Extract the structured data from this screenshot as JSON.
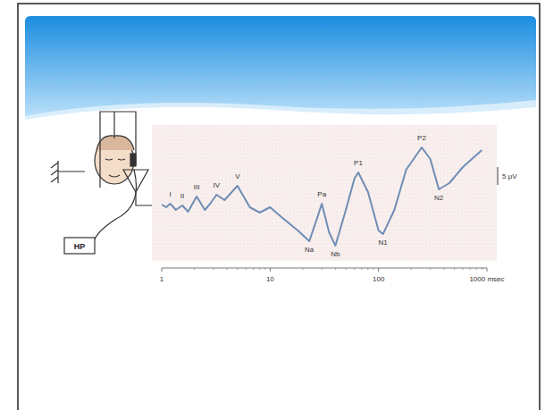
{
  "chart_data": {
    "type": "line",
    "log": "x",
    "color": "#6f8db5",
    "grid": false,
    "tick_labels": "x",
    "x": [
      1,
      1.1,
      1.2,
      1.35,
      1.55,
      1.75,
      2.1,
      2.5,
      2.8,
      3.2,
      3.8,
      5,
      6.5,
      8,
      10,
      13,
      18,
      23,
      27,
      30,
      35,
      40,
      50,
      60,
      65,
      80,
      100,
      110,
      140,
      180,
      250,
      300,
      360,
      450,
      600,
      900
    ],
    "values": [
      0.25,
      -0.5,
      0.5,
      -1.25,
      0,
      -1.75,
      2.5,
      -1.25,
      0.5,
      3,
      1.5,
      5.5,
      -0.5,
      -2,
      -0.5,
      -3.5,
      -7,
      -10,
      -3.75,
      0.5,
      -7.5,
      -11.25,
      -1.25,
      7.5,
      9.25,
      3.75,
      -7,
      -8,
      -1.25,
      10,
      16.25,
      13,
      4.5,
      6.25,
      10.75,
      15.5
    ],
    "xlim": [
      1,
      1000
    ],
    "xticks": [
      1,
      10,
      100,
      {
        "value": 1000,
        "label": "1000 msec"
      }
    ],
    "ylim": [
      -15.5,
      22.5
    ],
    "annotations": [
      {
        "text": "I",
        "x": 1.2,
        "y": 0.5
      },
      {
        "text": "II",
        "x": 1.55,
        "y": 0
      },
      {
        "text": "III",
        "x": 2.1,
        "y": 2.5
      },
      {
        "text": "IV",
        "x": 3.2,
        "y": 3
      },
      {
        "text": "V",
        "x": 5,
        "y": 5.5
      },
      {
        "text": "Na",
        "x": 23,
        "y": -10
      },
      {
        "text": "Pa",
        "x": 30,
        "y": 0.5
      },
      {
        "text": "Nb",
        "x": 40,
        "y": -11.25
      },
      {
        "text": "P1",
        "x": 65,
        "y": 9.25
      },
      {
        "text": "N1",
        "x": 110,
        "y": -8
      },
      {
        "text": "P2",
        "x": 250,
        "y": 16.25
      },
      {
        "text": "N2",
        "x": 360,
        "y": 4.5
      }
    ],
    "scale_bar": {
      "value": 5,
      "label": "5 µV"
    }
  },
  "figure": {
    "box_label": "HP"
  }
}
